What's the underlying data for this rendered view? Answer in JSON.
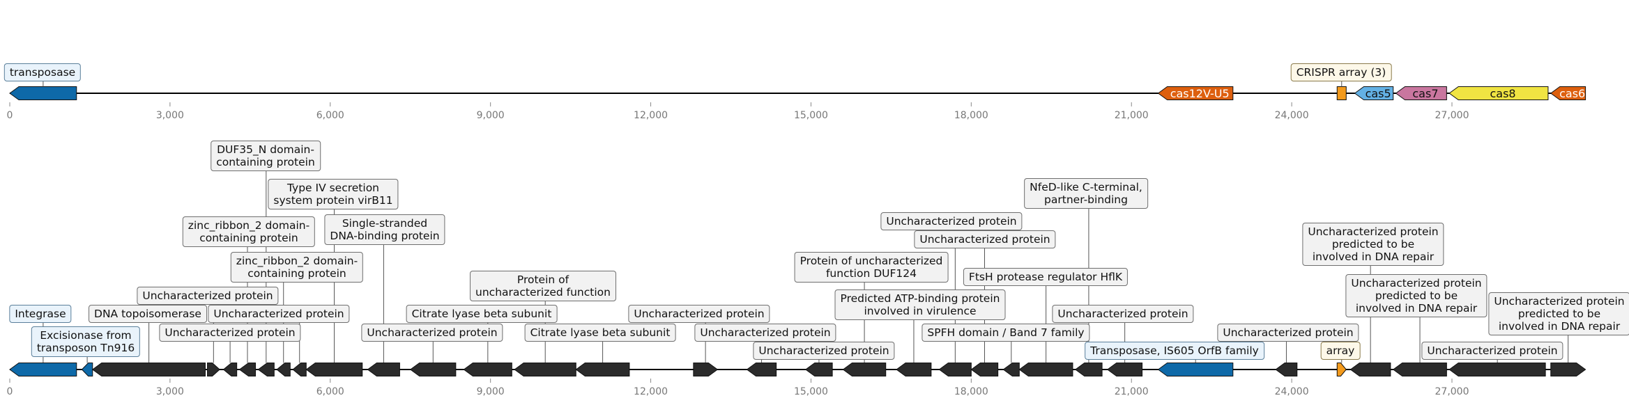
{
  "axis_ticks": [
    "0",
    "3,000",
    "6,000",
    "9,000",
    "12,000",
    "15,000",
    "18,000",
    "21,000",
    "24,000",
    "27,000"
  ],
  "colors": {
    "dark": "#2b2b2b",
    "transposase_blue": "#0e69a8",
    "cas12_orange": "#dd5f0e",
    "array_orange": "#f39a1c",
    "cas5_blue": "#63b1e5",
    "cas7_pink": "#c9769f",
    "cas8_yellow": "#f0e442",
    "cas6_orange": "#dd5f0e"
  },
  "tracks": [
    {
      "name": "top-track",
      "genes": [
        {
          "name": "transposase",
          "start": 0,
          "end": 1250,
          "strand": -1,
          "color": "transposase_blue",
          "text": ""
        },
        {
          "name": "cas12V-U5",
          "start": 21500,
          "end": 22900,
          "strand": -1,
          "color": "cas12_orange",
          "text": "cas12V-U5"
        },
        {
          "name": "CRISPR-array",
          "start": 24850,
          "end": 25020,
          "strand": 0,
          "color": "array_orange",
          "text": ""
        },
        {
          "name": "cas5",
          "start": 25180,
          "end": 25900,
          "strand": -1,
          "color": "cas5_blue",
          "text": "cas5"
        },
        {
          "name": "cas7",
          "start": 25950,
          "end": 26900,
          "strand": -1,
          "color": "cas7_pink",
          "text": "cas7"
        },
        {
          "name": "cas8",
          "start": 26950,
          "end": 28800,
          "strand": -1,
          "color": "cas8_yellow",
          "text": "cas8"
        },
        {
          "name": "cas6",
          "start": 28850,
          "end": 29500,
          "strand": -1,
          "color": "cas6_orange",
          "text": "cas6"
        }
      ],
      "labels": [
        {
          "text": "transposase",
          "style": "blue"
        },
        {
          "text": "CRISPR array (3)",
          "style": "cream"
        }
      ]
    },
    {
      "name": "bottom-track",
      "genes": [
        {
          "name": "integrase",
          "start": 0,
          "end": 1250,
          "strand": -1,
          "color": "transposase_blue"
        },
        {
          "name": "excisionase",
          "start": 1350,
          "end": 1550,
          "strand": -1,
          "color": "transposase_blue"
        },
        {
          "name": "dna-topoisomerase",
          "start": 1550,
          "end": 3660,
          "strand": -1,
          "color": "dark"
        },
        {
          "name": "orf-3700",
          "start": 3700,
          "end": 3930,
          "strand": 1,
          "color": "dark"
        },
        {
          "name": "orf-4000",
          "start": 4000,
          "end": 4250,
          "strand": -1,
          "color": "dark"
        },
        {
          "name": "orf-4300",
          "start": 4300,
          "end": 4600,
          "strand": -1,
          "color": "dark"
        },
        {
          "name": "orf-4650",
          "start": 4650,
          "end": 4950,
          "strand": -1,
          "color": "dark"
        },
        {
          "name": "orf-5000",
          "start": 5000,
          "end": 5250,
          "strand": -1,
          "color": "dark"
        },
        {
          "name": "orf-5300",
          "start": 5300,
          "end": 5550,
          "strand": -1,
          "color": "dark"
        },
        {
          "name": "orf-5550",
          "start": 5550,
          "end": 6600,
          "strand": -1,
          "color": "dark"
        },
        {
          "name": "orf-6700",
          "start": 6700,
          "end": 7300,
          "strand": -1,
          "color": "dark"
        },
        {
          "name": "orf-7500",
          "start": 7500,
          "end": 8350,
          "strand": -1,
          "color": "dark"
        },
        {
          "name": "orf-8500",
          "start": 8500,
          "end": 9400,
          "strand": -1,
          "color": "dark"
        },
        {
          "name": "orf-9450",
          "start": 9450,
          "end": 10600,
          "strand": -1,
          "color": "dark"
        },
        {
          "name": "orf-10600",
          "start": 10600,
          "end": 11600,
          "strand": -1,
          "color": "dark"
        },
        {
          "name": "orf-12800",
          "start": 12800,
          "end": 13250,
          "strand": 1,
          "color": "dark"
        },
        {
          "name": "orf-13800",
          "start": 13800,
          "end": 14350,
          "strand": -1,
          "color": "dark"
        },
        {
          "name": "orf-14900",
          "start": 14900,
          "end": 15400,
          "strand": -1,
          "color": "dark"
        },
        {
          "name": "orf-15600",
          "start": 15600,
          "end": 16400,
          "strand": -1,
          "color": "dark"
        },
        {
          "name": "orf-16600",
          "start": 16600,
          "end": 17250,
          "strand": -1,
          "color": "dark"
        },
        {
          "name": "orf-17400",
          "start": 17400,
          "end": 18000,
          "strand": -1,
          "color": "dark"
        },
        {
          "name": "orf-18000",
          "start": 18000,
          "end": 18500,
          "strand": -1,
          "color": "dark"
        },
        {
          "name": "orf-18600",
          "start": 18600,
          "end": 18900,
          "strand": -1,
          "color": "dark"
        },
        {
          "name": "orf-18900",
          "start": 18900,
          "end": 19900,
          "strand": -1,
          "color": "dark"
        },
        {
          "name": "orf-19950",
          "start": 19950,
          "end": 20450,
          "strand": -1,
          "color": "dark"
        },
        {
          "name": "orf-20550",
          "start": 20550,
          "end": 21200,
          "strand": -1,
          "color": "dark"
        },
        {
          "name": "transposase-is605",
          "start": 21500,
          "end": 22900,
          "strand": -1,
          "color": "transposase_blue"
        },
        {
          "name": "orf-23700",
          "start": 23700,
          "end": 24100,
          "strand": -1,
          "color": "dark"
        },
        {
          "name": "array",
          "start": 24850,
          "end": 25020,
          "strand": 1,
          "color": "array_orange"
        },
        {
          "name": "orf-25100",
          "start": 25100,
          "end": 25850,
          "strand": -1,
          "color": "dark"
        },
        {
          "name": "orf-25900",
          "start": 25900,
          "end": 26900,
          "strand": -1,
          "color": "dark"
        },
        {
          "name": "orf-26950",
          "start": 26950,
          "end": 28750,
          "strand": -1,
          "color": "dark"
        },
        {
          "name": "orf-28850",
          "start": 28850,
          "end": 29500,
          "strand": 1,
          "color": "dark"
        }
      ],
      "labels": [
        {
          "text": "Integrase",
          "style": "blue"
        },
        {
          "text": "Excisionase from\ntransposon Tn916",
          "style": "blue"
        },
        {
          "text": "DNA topoisomerase",
          "style": "grey"
        },
        {
          "text": "Uncharacterized protein",
          "style": "grey"
        },
        {
          "text": "Uncharacterized protein",
          "style": "grey"
        },
        {
          "text": "zinc_ribbon_2 domain-\ncontaining protein",
          "style": "grey"
        },
        {
          "text": "DUF35_N domain-\ncontaining protein",
          "style": "grey"
        },
        {
          "text": "zinc_ribbon_2 domain-\ncontaining protein",
          "style": "grey"
        },
        {
          "text": "Uncharacterized protein",
          "style": "grey"
        },
        {
          "text": "Type IV secretion\nsystem protein virB11",
          "style": "grey"
        },
        {
          "text": "Single-stranded\nDNA-binding protein",
          "style": "grey"
        },
        {
          "text": "Uncharacterized protein",
          "style": "grey"
        },
        {
          "text": "Citrate lyase beta subunit",
          "style": "grey"
        },
        {
          "text": "Protein of\nuncharacterized function",
          "style": "grey"
        },
        {
          "text": "Citrate lyase beta subunit",
          "style": "grey"
        },
        {
          "text": "Uncharacterized protein",
          "style": "grey"
        },
        {
          "text": "Uncharacterized protein",
          "style": "grey"
        },
        {
          "text": "Uncharacterized protein",
          "style": "grey"
        },
        {
          "text": "Protein of uncharacterized\nfunction DUF124",
          "style": "grey"
        },
        {
          "text": "Predicted ATP-binding protein\ninvolved in virulence",
          "style": "grey"
        },
        {
          "text": "Uncharacterized protein",
          "style": "grey"
        },
        {
          "text": "Uncharacterized protein",
          "style": "grey"
        },
        {
          "text": "SPFH domain / Band 7 family",
          "style": "grey"
        },
        {
          "text": "FtsH protease regulator HflK",
          "style": "grey"
        },
        {
          "text": "NfeD-like C-terminal,\npartner-binding",
          "style": "grey"
        },
        {
          "text": "Uncharacterized protein",
          "style": "grey"
        },
        {
          "text": "Transposase, IS605 OrfB family",
          "style": "blue"
        },
        {
          "text": "Uncharacterized protein",
          "style": "grey"
        },
        {
          "text": "array",
          "style": "cream"
        },
        {
          "text": "Uncharacterized protein\npredicted to be\ninvolved in DNA repair",
          "style": "grey"
        },
        {
          "text": "Uncharacterized protein\npredicted to be\ninvolved in DNA repair",
          "style": "grey"
        },
        {
          "text": "Uncharacterized protein",
          "style": "grey"
        },
        {
          "text": "Uncharacterized protein\npredicted to be\ninvolved in DNA repair",
          "style": "grey"
        }
      ]
    }
  ]
}
